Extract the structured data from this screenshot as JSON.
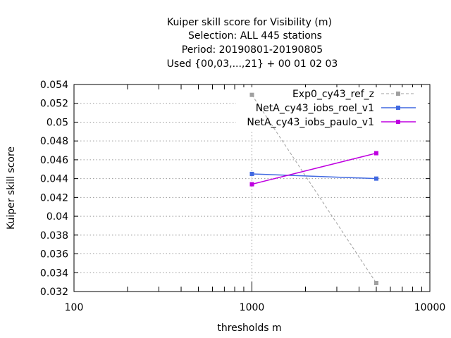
{
  "chart_data": {
    "type": "line",
    "title_lines": [
      "Kuiper skill score  for Visibility (m)",
      "Selection: ALL    445 stations",
      "Period: 20190801-20190805",
      "Used {00,03,...,21} + 00 01 02 03"
    ],
    "xlabel": "thresholds m",
    "ylabel": "Kuiper skill score",
    "x_scale": "log",
    "xlim": [
      100,
      10000
    ],
    "ylim": [
      0.032,
      0.054
    ],
    "x_ticks": [
      100,
      1000,
      10000
    ],
    "x_tick_labels": [
      "100",
      "1000",
      "10000"
    ],
    "y_ticks": [
      0.032,
      0.034,
      0.036,
      0.038,
      0.04,
      0.042,
      0.044,
      0.046,
      0.048,
      0.05,
      0.052,
      0.054
    ],
    "y_tick_labels": [
      "0.032",
      "0.034",
      "0.036",
      "0.038",
      "0.04",
      "0.042",
      "0.044",
      "0.046",
      "0.048",
      "0.05",
      "0.052",
      "0.054"
    ],
    "grid": true,
    "legend_position": "top-right",
    "series": [
      {
        "name": "Exp0_cy43_ref_z",
        "color": "#a0a0a0",
        "dashed": true,
        "x": [
          1000,
          5000
        ],
        "y": [
          0.0529,
          0.0329
        ]
      },
      {
        "name": "NetA_cy43_iobs_roel_v1",
        "color": "#4169e1",
        "dashed": false,
        "x": [
          1000,
          5000
        ],
        "y": [
          0.0445,
          0.044
        ]
      },
      {
        "name": "NetA_cy43_iobs_paulo_v1",
        "color": "#bf00e0",
        "dashed": false,
        "x": [
          1000,
          5000
        ],
        "y": [
          0.0434,
          0.0467
        ]
      }
    ]
  }
}
